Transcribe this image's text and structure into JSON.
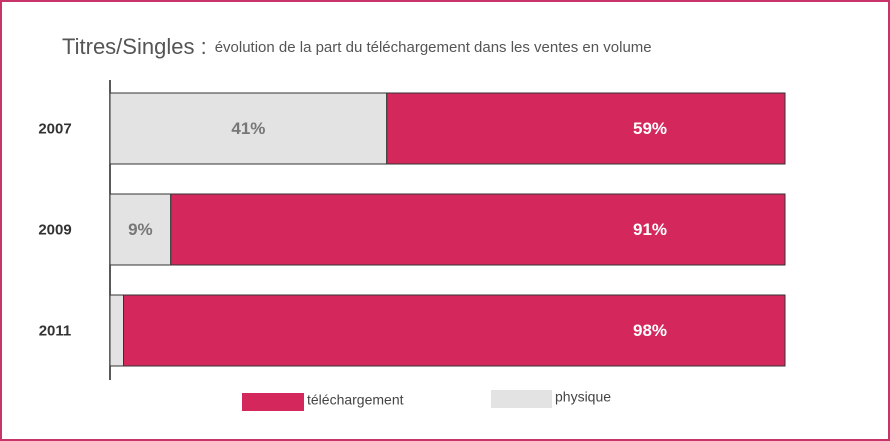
{
  "chart_data": {
    "type": "stacked-bar-horizontal",
    "title": "Titres/Singles :",
    "subtitle": "évolution de la part du téléchargement dans les ventes en volume",
    "categories": [
      "2007",
      "2009",
      "2011"
    ],
    "series": [
      {
        "name": "physique",
        "color": "#e3e3e3",
        "values": [
          41,
          9,
          2
        ],
        "value_labels": [
          "41%",
          "9%",
          "2%"
        ]
      },
      {
        "name": "téléchargement",
        "color": "#d4275c",
        "values": [
          59,
          91,
          98
        ],
        "value_labels": [
          "59%",
          "91%",
          "98%"
        ]
      }
    ],
    "xlim": [
      0,
      100
    ]
  }
}
